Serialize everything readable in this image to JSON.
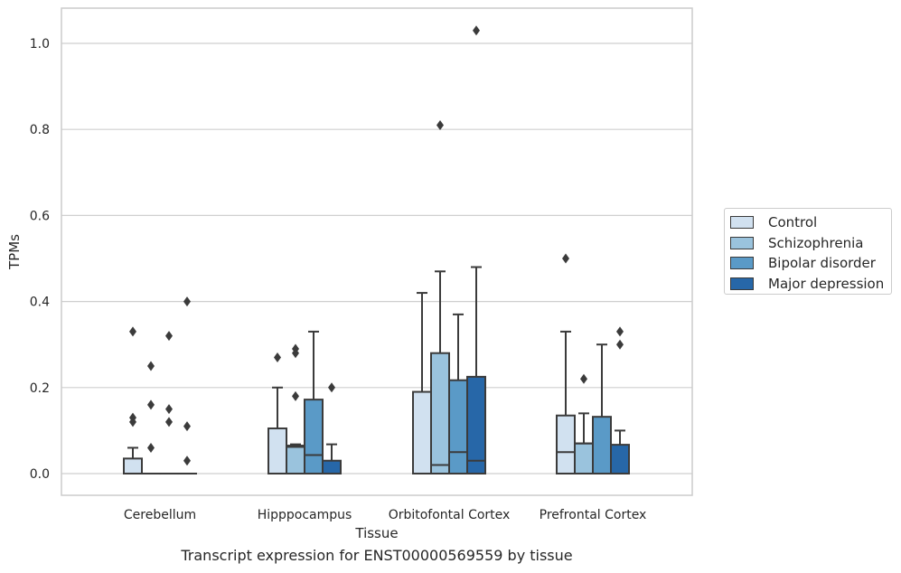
{
  "chart_data": {
    "type": "box",
    "xlabel": "Tissue",
    "ylabel": "TPMs",
    "ylim": [
      -0.05,
      1.08
    ],
    "yticks": [
      0.0,
      0.2,
      0.4,
      0.6,
      0.8,
      1.0
    ],
    "ytick_labels": [
      "0.0",
      "0.2",
      "0.4",
      "0.6",
      "0.8",
      "1.0"
    ],
    "grid": "horizontal",
    "legend_position": "right",
    "categories": [
      "Cerebellum",
      "Hipppocampus",
      "Orbitofontal Cortex",
      "Prefrontal Cortex"
    ],
    "series": [
      {
        "name": "Control",
        "color": "#d1e1f0",
        "boxes": [
          {
            "min": 0.0,
            "q1": 0.0,
            "median": 0.0,
            "q3": 0.035,
            "max": 0.06,
            "outliers": [
              0.33,
              0.13,
              0.12
            ]
          },
          {
            "min": 0.0,
            "q1": 0.0,
            "median": 0.0,
            "q3": 0.105,
            "max": 0.2,
            "outliers": [
              0.27
            ]
          },
          {
            "min": 0.0,
            "q1": 0.0,
            "median": 0.0,
            "q3": 0.19,
            "max": 0.42,
            "outliers": []
          },
          {
            "min": 0.0,
            "q1": 0.0,
            "median": 0.05,
            "q3": 0.135,
            "max": 0.33,
            "outliers": [
              0.5
            ]
          }
        ]
      },
      {
        "name": "Schizophrenia",
        "color": "#9ac3dd",
        "boxes": [
          {
            "min": 0.0,
            "q1": 0.0,
            "median": 0.0,
            "q3": 0.0,
            "max": 0.0,
            "outliers": [
              0.25,
              0.16,
              0.06
            ]
          },
          {
            "min": 0.0,
            "q1": 0.0,
            "median": 0.062,
            "q3": 0.065,
            "max": 0.068,
            "outliers": [
              0.29,
              0.28,
              0.18
            ]
          },
          {
            "min": 0.0,
            "q1": 0.0,
            "median": 0.02,
            "q3": 0.28,
            "max": 0.47,
            "outliers": [
              0.81
            ]
          },
          {
            "min": 0.0,
            "q1": 0.0,
            "median": 0.07,
            "q3": 0.07,
            "max": 0.14,
            "outliers": [
              0.22
            ]
          }
        ]
      },
      {
        "name": "Bipolar disorder",
        "color": "#5a9ac7",
        "boxes": [
          {
            "min": 0.0,
            "q1": 0.0,
            "median": 0.0,
            "q3": 0.0,
            "max": 0.0,
            "outliers": [
              0.32,
              0.15,
              0.12
            ]
          },
          {
            "min": 0.0,
            "q1": 0.0,
            "median": 0.043,
            "q3": 0.172,
            "max": 0.33,
            "outliers": []
          },
          {
            "min": 0.0,
            "q1": 0.0,
            "median": 0.05,
            "q3": 0.217,
            "max": 0.37,
            "outliers": []
          },
          {
            "min": 0.0,
            "q1": 0.0,
            "median": 0.0,
            "q3": 0.132,
            "max": 0.3,
            "outliers": []
          }
        ]
      },
      {
        "name": "Major depression",
        "color": "#2767a8",
        "boxes": [
          {
            "min": 0.0,
            "q1": 0.0,
            "median": 0.0,
            "q3": 0.0,
            "max": 0.0,
            "outliers": [
              0.4,
              0.11,
              0.03
            ]
          },
          {
            "min": 0.0,
            "q1": 0.0,
            "median": 0.0,
            "q3": 0.03,
            "max": 0.068,
            "outliers": [
              0.2
            ]
          },
          {
            "min": 0.0,
            "q1": 0.0,
            "median": 0.03,
            "q3": 0.225,
            "max": 0.48,
            "outliers": [
              1.03
            ]
          },
          {
            "min": 0.0,
            "q1": 0.0,
            "median": 0.0,
            "q3": 0.067,
            "max": 0.1,
            "outliers": [
              0.33,
              0.3
            ]
          }
        ]
      }
    ]
  },
  "caption": "Transcript expression for ENST00000569559 by tissue"
}
